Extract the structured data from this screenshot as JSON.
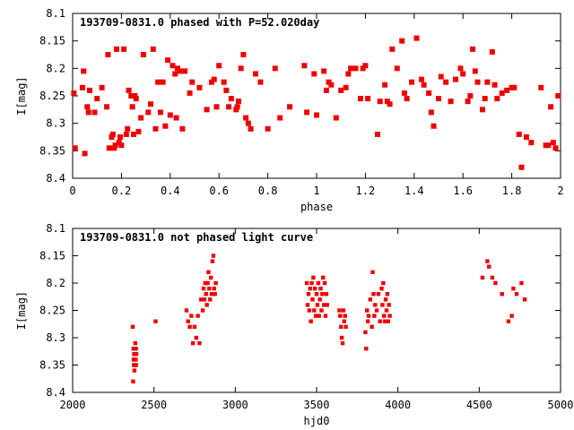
{
  "chart_data": [
    {
      "type": "scatter",
      "title": "193709-0831.0 phased with P=52.020day",
      "xlabel": "phase",
      "ylabel": "I[mag]",
      "xlim": [
        0,
        2
      ],
      "ylim": [
        8.4,
        8.1
      ],
      "y_inverted": true,
      "xticks": [
        "0",
        "0.2",
        "0.4",
        "0.6",
        "0.8",
        "1",
        "1.2",
        "1.4",
        "1.6",
        "1.8",
        "2"
      ],
      "yticks": [
        "8.1",
        "8.15",
        "8.2",
        "8.25",
        "8.3",
        "8.35",
        "8.4"
      ],
      "grid": false,
      "marker_color": "#ee0000",
      "x": [
        0.005,
        0.01,
        0.04,
        0.045,
        0.05,
        0.06,
        0.065,
        0.07,
        0.09,
        0.1,
        0.12,
        0.14,
        0.145,
        0.15,
        0.16,
        0.165,
        0.17,
        0.175,
        0.18,
        0.19,
        0.195,
        0.2,
        0.21,
        0.22,
        0.225,
        0.23,
        0.24,
        0.245,
        0.25,
        0.255,
        0.26,
        0.27,
        0.28,
        0.29,
        0.31,
        0.32,
        0.33,
        0.34,
        0.35,
        0.36,
        0.37,
        0.38,
        0.39,
        0.4,
        0.41,
        0.42,
        0.425,
        0.43,
        0.44,
        0.45,
        0.46,
        0.48,
        0.49,
        0.52,
        0.55,
        0.57,
        0.58,
        0.59,
        0.6,
        0.62,
        0.63,
        0.64,
        0.65,
        0.67,
        0.675,
        0.68,
        0.69,
        0.7,
        0.71,
        0.72,
        0.73,
        0.75,
        0.77,
        0.8,
        0.83,
        0.85,
        0.89,
        0.95,
        0.96,
        0.99,
        1.0,
        1.03,
        1.04,
        1.05,
        1.06,
        1.08,
        1.1,
        1.12,
        1.13,
        1.14,
        1.16,
        1.18,
        1.19,
        1.2,
        1.21,
        1.25,
        1.26,
        1.28,
        1.29,
        1.3,
        1.31,
        1.33,
        1.35,
        1.36,
        1.37,
        1.39,
        1.41,
        1.43,
        1.44,
        1.46,
        1.47,
        1.48,
        1.5,
        1.51,
        1.53,
        1.55,
        1.57,
        1.59,
        1.6,
        1.62,
        1.63,
        1.64,
        1.65,
        1.66,
        1.68,
        1.69,
        1.7,
        1.72,
        1.73,
        1.74,
        1.76,
        1.78,
        1.8,
        1.81,
        1.83,
        1.84,
        1.86,
        1.88,
        1.92,
        1.94,
        1.95,
        1.96,
        1.97,
        1.98,
        1.99
      ],
      "y": [
        8.245,
        8.345,
        8.235,
        8.205,
        8.355,
        8.27,
        8.28,
        8.24,
        8.28,
        8.255,
        8.235,
        8.27,
        8.175,
        8.345,
        8.325,
        8.32,
        8.345,
        8.34,
        8.165,
        8.335,
        8.325,
        8.34,
        8.165,
        8.32,
        8.31,
        8.24,
        8.25,
        8.27,
        8.32,
        8.25,
        8.255,
        8.315,
        8.29,
        8.175,
        8.28,
        8.265,
        8.165,
        8.31,
        8.225,
        8.28,
        8.225,
        8.305,
        8.185,
        8.285,
        8.195,
        8.21,
        8.29,
        8.2,
        8.205,
        8.31,
        8.205,
        8.245,
        8.225,
        8.235,
        8.275,
        8.225,
        8.22,
        8.27,
        8.195,
        8.225,
        8.24,
        8.27,
        8.255,
        8.275,
        8.27,
        8.26,
        8.2,
        8.175,
        8.29,
        8.3,
        8.31,
        8.21,
        8.225,
        8.31,
        8.2,
        8.29,
        8.27,
        8.195,
        8.28,
        8.21,
        8.285,
        8.205,
        8.24,
        8.225,
        8.23,
        8.29,
        8.24,
        8.235,
        8.21,
        8.2,
        8.2,
        8.255,
        8.2,
        8.195,
        8.255,
        8.32,
        8.26,
        8.23,
        8.26,
        8.265,
        8.165,
        8.2,
        8.15,
        8.245,
        8.255,
        8.225,
        8.145,
        8.22,
        8.23,
        8.245,
        8.28,
        8.305,
        8.255,
        8.215,
        8.225,
        8.26,
        8.22,
        8.2,
        8.21,
        8.26,
        8.25,
        8.165,
        8.205,
        8.225,
        8.275,
        8.255,
        8.225,
        8.17,
        8.23,
        8.255,
        8.245,
        8.24,
        8.235,
        8.235,
        8.32,
        8.38,
        8.325,
        8.335,
        8.235,
        8.34,
        8.34,
        8.27,
        8.335,
        8.345,
        8.25
      ]
    },
    {
      "type": "scatter",
      "title": "193709-0831.0 not phased light curve",
      "xlabel": "hjd0",
      "ylabel": "I[mag]",
      "xlim": [
        2000,
        5000
      ],
      "ylim": [
        8.4,
        8.1
      ],
      "y_inverted": true,
      "xticks": [
        "2000",
        "2500",
        "3000",
        "3500",
        "4000",
        "4500",
        "5000"
      ],
      "yticks": [
        "8.1",
        "8.15",
        "8.2",
        "8.25",
        "8.3",
        "8.35",
        "8.4"
      ],
      "grid": false,
      "marker_color": "#ee0000",
      "x": [
        2370,
        2372,
        2374,
        2375,
        2377,
        2378,
        2380,
        2381,
        2382,
        2383,
        2384,
        2385,
        2386,
        2387,
        2388,
        2389,
        2390,
        2392,
        2510,
        2700,
        2710,
        2720,
        2730,
        2740,
        2750,
        2760,
        2770,
        2780,
        2790,
        2800,
        2805,
        2810,
        2815,
        2820,
        2825,
        2830,
        2835,
        2840,
        2845,
        2850,
        2855,
        2860,
        2865,
        2870,
        2875,
        2880,
        3440,
        3445,
        3450,
        3455,
        3460,
        3465,
        3470,
        3475,
        3480,
        3485,
        3490,
        3495,
        3500,
        3505,
        3510,
        3515,
        3520,
        3525,
        3530,
        3535,
        3540,
        3545,
        3550,
        3555,
        3560,
        3565,
        3640,
        3645,
        3650,
        3655,
        3660,
        3665,
        3670,
        3675,
        3680,
        3800,
        3805,
        3810,
        3815,
        3820,
        3830,
        3840,
        3845,
        3850,
        3855,
        3860,
        3870,
        3880,
        3890,
        3900,
        3905,
        3910,
        3915,
        3920,
        3925,
        3930,
        3935,
        3940,
        3945,
        3950,
        4520,
        4550,
        4560,
        4580,
        4600,
        4640,
        4680,
        4700,
        4710,
        4730,
        4760,
        4780
      ],
      "y": [
        8.28,
        8.38,
        8.32,
        8.34,
        8.35,
        8.33,
        8.36,
        8.32,
        8.34,
        8.35,
        8.33,
        8.31,
        8.33,
        8.32,
        8.34,
        8.32,
        8.35,
        8.33,
        8.27,
        8.25,
        8.27,
        8.28,
        8.26,
        8.31,
        8.28,
        8.3,
        8.26,
        8.31,
        8.23,
        8.25,
        8.21,
        8.23,
        8.2,
        8.22,
        8.24,
        8.2,
        8.18,
        8.21,
        8.23,
        8.19,
        8.22,
        8.16,
        8.15,
        8.21,
        8.22,
        8.2,
        8.2,
        8.24,
        8.22,
        8.25,
        8.21,
        8.27,
        8.2,
        8.23,
        8.19,
        8.25,
        8.21,
        8.26,
        8.22,
        8.24,
        8.2,
        8.26,
        8.23,
        8.21,
        8.25,
        8.22,
        8.19,
        8.24,
        8.2,
        8.26,
        8.22,
        8.24,
        8.25,
        8.26,
        8.28,
        8.3,
        8.31,
        8.25,
        8.27,
        8.26,
        8.28,
        8.29,
        8.32,
        8.25,
        8.27,
        8.26,
        8.23,
        8.28,
        8.18,
        8.22,
        8.26,
        8.24,
        8.25,
        8.22,
        8.27,
        8.21,
        8.24,
        8.2,
        8.26,
        8.27,
        8.23,
        8.25,
        8.22,
        8.27,
        8.24,
        8.26,
        8.19,
        8.16,
        8.17,
        8.19,
        8.2,
        8.22,
        8.27,
        8.26,
        8.21,
        8.22,
        8.2,
        8.23
      ]
    }
  ]
}
